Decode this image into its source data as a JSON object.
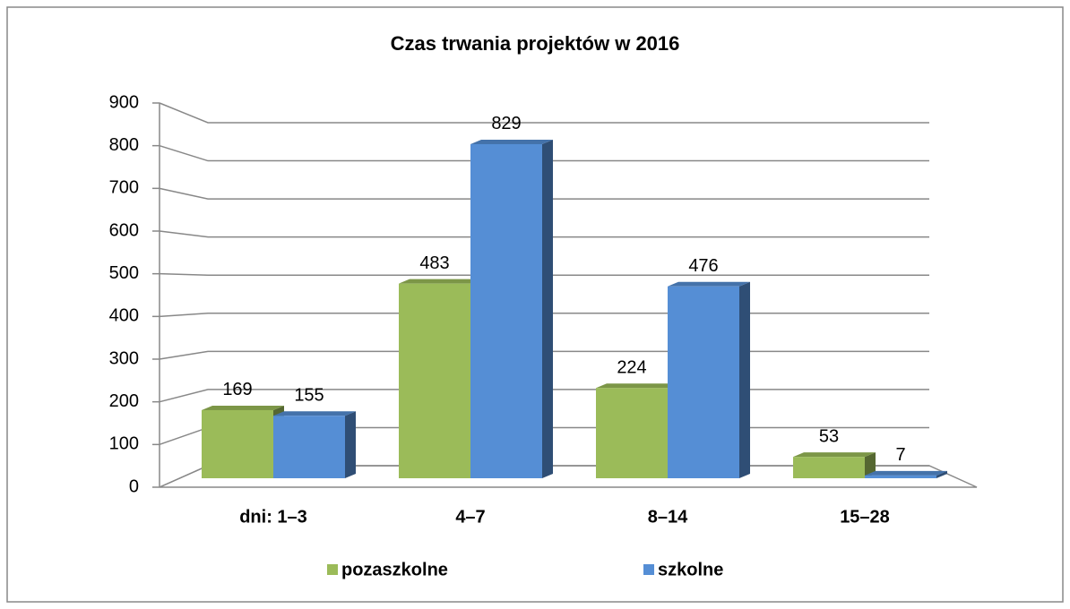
{
  "chart_data": {
    "type": "bar3d",
    "title": "Czas trwania projektów w 2016",
    "categories": [
      "dni: 1–3",
      "4–7",
      "8–14",
      "15–28"
    ],
    "series": [
      {
        "name": "pozaszkolne",
        "color": "#9bbb59",
        "values": [
          169,
          483,
          224,
          53
        ]
      },
      {
        "name": "szkolne",
        "color": "#558ed5",
        "values": [
          155,
          829,
          476,
          7
        ]
      }
    ],
    "ylim": [
      0,
      900
    ],
    "yticks": [
      0,
      100,
      200,
      300,
      400,
      500,
      600,
      700,
      800,
      900
    ],
    "grid": true,
    "legend": "bottom"
  }
}
